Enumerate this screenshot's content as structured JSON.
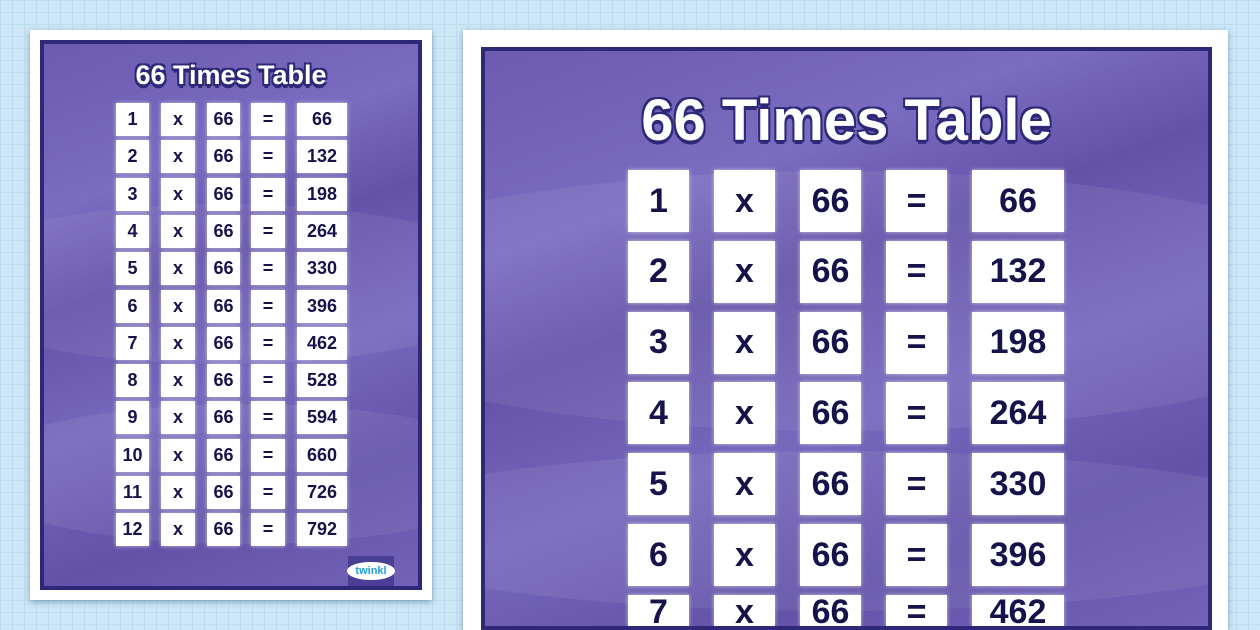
{
  "title": "66 Times Table",
  "multiplier": "66",
  "times_sign": "x",
  "equals_sign": "=",
  "rows": [
    {
      "n": "1",
      "result": "66"
    },
    {
      "n": "2",
      "result": "132"
    },
    {
      "n": "3",
      "result": "198"
    },
    {
      "n": "4",
      "result": "264"
    },
    {
      "n": "5",
      "result": "330"
    },
    {
      "n": "6",
      "result": "396"
    },
    {
      "n": "7",
      "result": "462"
    },
    {
      "n": "8",
      "result": "528"
    },
    {
      "n": "9",
      "result": "594"
    },
    {
      "n": "10",
      "result": "660"
    },
    {
      "n": "11",
      "result": "726"
    },
    {
      "n": "12",
      "result": "792"
    }
  ],
  "logo": "twinkl",
  "colors": {
    "purple": "#6c5bb0",
    "border": "#2d2878",
    "text": "#16124a"
  }
}
